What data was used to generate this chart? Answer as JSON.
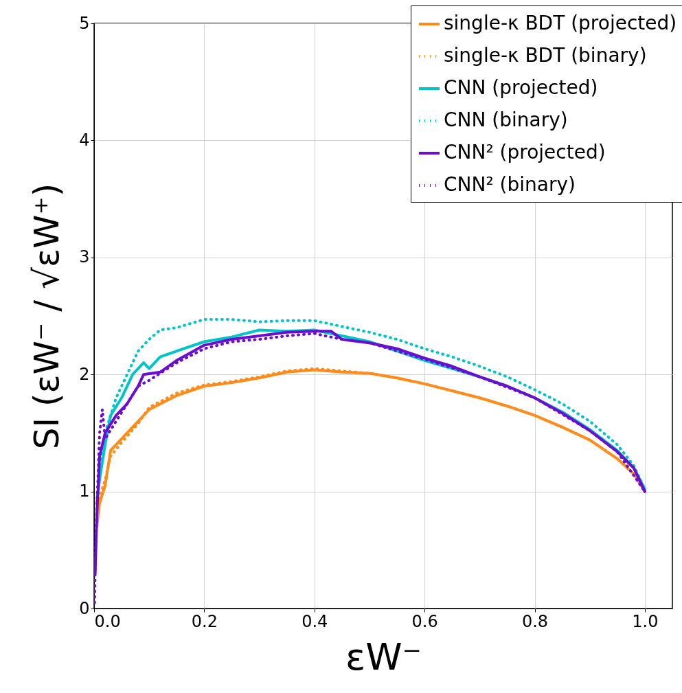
{
  "chart_data": {
    "type": "line",
    "xlabel": "εW⁻",
    "ylabel": "SI (εW⁻ / √εW⁺)",
    "xlim": [
      0,
      1.05
    ],
    "xticks": [
      {
        "value": 0,
        "label": "0.0"
      },
      {
        "value": 0.2,
        "label": "0.2"
      },
      {
        "value": 0.4,
        "label": "0.4"
      },
      {
        "value": 0.6,
        "label": "0.6"
      },
      {
        "value": 0.8,
        "label": "0.8"
      },
      {
        "value": 1,
        "label": "1.0"
      }
    ],
    "ylim": [
      0,
      5
    ],
    "yticks": [
      0,
      1,
      2,
      3,
      4,
      5
    ],
    "grid": true,
    "legend": "top right",
    "series": [
      {
        "name": "single-κ BDT  (projected)",
        "color": "#ff8c1a",
        "line_style": "solid",
        "x": [
          0.005,
          0.01,
          0.02,
          0.03,
          0.05,
          0.08,
          0.1,
          0.15,
          0.2,
          0.25,
          0.3,
          0.35,
          0.4,
          0.45,
          0.5,
          0.55,
          0.6,
          0.65,
          0.7,
          0.75,
          0.8,
          0.85,
          0.9,
          0.95,
          0.98,
          1.0
        ],
        "values": [
          0.7,
          0.9,
          1.05,
          1.35,
          1.45,
          1.6,
          1.7,
          1.82,
          1.9,
          1.93,
          1.97,
          2.02,
          2.04,
          2.02,
          2.01,
          1.97,
          1.92,
          1.86,
          1.8,
          1.73,
          1.65,
          1.55,
          1.44,
          1.28,
          1.15,
          1.0
        ]
      },
      {
        "name": "single-κ BDT  (binary)",
        "color": "#ff8c1a",
        "line_style": "dotted",
        "x": [
          0.005,
          0.01,
          0.02,
          0.03,
          0.05,
          0.08,
          0.1,
          0.15,
          0.2,
          0.25,
          0.3,
          0.35,
          0.4,
          0.45,
          0.5,
          0.55,
          0.6,
          0.65,
          0.7,
          0.75,
          0.8,
          0.85,
          0.9,
          0.95,
          0.98,
          1.0
        ],
        "values": [
          0.75,
          0.95,
          1.1,
          1.3,
          1.42,
          1.58,
          1.72,
          1.84,
          1.91,
          1.94,
          1.98,
          2.03,
          2.05,
          2.03,
          2.01,
          1.97,
          1.92,
          1.86,
          1.8,
          1.73,
          1.65,
          1.55,
          1.44,
          1.28,
          1.15,
          1.0
        ]
      },
      {
        "name": "CNN  (projected)",
        "color": "#00c5c8",
        "line_style": "solid",
        "x": [
          0.005,
          0.01,
          0.02,
          0.03,
          0.05,
          0.07,
          0.09,
          0.1,
          0.12,
          0.15,
          0.2,
          0.25,
          0.3,
          0.35,
          0.4,
          0.45,
          0.5,
          0.55,
          0.6,
          0.65,
          0.7,
          0.75,
          0.8,
          0.85,
          0.9,
          0.95,
          0.98,
          1.0
        ],
        "values": [
          0.9,
          1.1,
          1.4,
          1.65,
          1.8,
          2.0,
          2.1,
          2.05,
          2.15,
          2.2,
          2.28,
          2.32,
          2.38,
          2.37,
          2.38,
          2.33,
          2.28,
          2.2,
          2.12,
          2.05,
          1.98,
          1.9,
          1.8,
          1.68,
          1.53,
          1.35,
          1.2,
          1.02
        ]
      },
      {
        "name": "CNN  (binary)",
        "color": "#00c5c8",
        "line_style": "dotted",
        "x": [
          0.005,
          0.01,
          0.02,
          0.04,
          0.06,
          0.08,
          0.1,
          0.12,
          0.15,
          0.2,
          0.25,
          0.3,
          0.35,
          0.4,
          0.45,
          0.5,
          0.55,
          0.6,
          0.65,
          0.7,
          0.75,
          0.8,
          0.85,
          0.9,
          0.95,
          0.98,
          1.0
        ],
        "values": [
          0.9,
          1.2,
          1.5,
          1.8,
          2.0,
          2.2,
          2.3,
          2.38,
          2.4,
          2.47,
          2.47,
          2.45,
          2.46,
          2.46,
          2.41,
          2.36,
          2.3,
          2.22,
          2.15,
          2.07,
          1.98,
          1.87,
          1.75,
          1.6,
          1.4,
          1.22,
          1.02
        ]
      },
      {
        "name": "CNN² (projected)",
        "color": "#6a0dcf",
        "line_style": "solid",
        "x": [
          0.002,
          0.005,
          0.01,
          0.02,
          0.04,
          0.06,
          0.08,
          0.09,
          0.12,
          0.15,
          0.2,
          0.25,
          0.3,
          0.35,
          0.4,
          0.43,
          0.45,
          0.5,
          0.55,
          0.6,
          0.65,
          0.7,
          0.75,
          0.8,
          0.85,
          0.9,
          0.95,
          0.98,
          1.0
        ],
        "values": [
          0.3,
          0.8,
          1.3,
          1.5,
          1.65,
          1.75,
          1.9,
          2.0,
          2.02,
          2.12,
          2.25,
          2.3,
          2.33,
          2.36,
          2.37,
          2.37,
          2.3,
          2.27,
          2.22,
          2.14,
          2.07,
          1.98,
          1.9,
          1.8,
          1.67,
          1.52,
          1.34,
          1.2,
          1.0
        ]
      },
      {
        "name": "CNN² (binary)",
        "color": "#6a0dcf",
        "line_style": "dotted",
        "x": [
          0.001,
          0.003,
          0.01,
          0.015,
          0.02,
          0.04,
          0.06,
          0.08,
          0.1,
          0.15,
          0.2,
          0.25,
          0.3,
          0.35,
          0.4,
          0.45,
          0.5,
          0.6,
          0.7,
          0.8,
          0.9,
          0.95,
          1.0
        ],
        "values": [
          0.05,
          0.6,
          1.5,
          1.7,
          1.45,
          1.6,
          1.75,
          1.9,
          1.95,
          2.1,
          2.22,
          2.28,
          2.3,
          2.33,
          2.35,
          2.3,
          2.27,
          2.13,
          1.98,
          1.8,
          1.52,
          1.34,
          1.0
        ]
      }
    ]
  }
}
